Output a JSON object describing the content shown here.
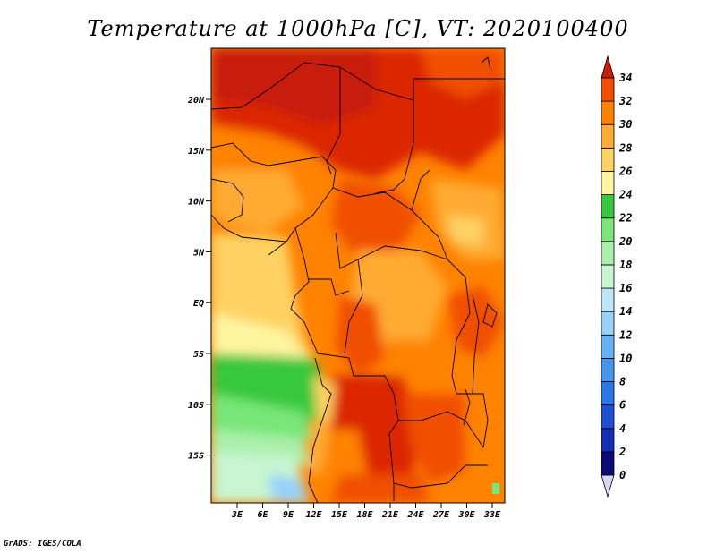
{
  "title": "Temperature at 1000hPa [C], VT: 2020100400",
  "footer": "GrADS: IGES/COLA",
  "map": {
    "lat_labels": [
      "20N",
      "15N",
      "10N",
      "5N",
      "EQ",
      "5S",
      "10S",
      "15S"
    ],
    "lon_labels": [
      "3E",
      "6E",
      "9E",
      "12E",
      "15E",
      "18E",
      "21E",
      "24E",
      "27E",
      "30E",
      "33E"
    ]
  },
  "colorbar": {
    "labels": [
      "0",
      "2",
      "4",
      "6",
      "8",
      "10",
      "12",
      "14",
      "16",
      "18",
      "20",
      "22",
      "24",
      "26",
      "28",
      "30",
      "32",
      "34"
    ],
    "colors": [
      "#0a0a78",
      "#1430b4",
      "#1e50d2",
      "#2878e6",
      "#4696f0",
      "#64b4f5",
      "#96d2fa",
      "#bee6fa",
      "#c8f5d2",
      "#aaf0aa",
      "#78e678",
      "#37c83c",
      "#fff5a0",
      "#ffd264",
      "#ffaa32",
      "#ff8200",
      "#f04f00",
      "#dc2800"
    ],
    "under_color": "#d8d8f5",
    "over_color": "#c81e0a"
  }
}
